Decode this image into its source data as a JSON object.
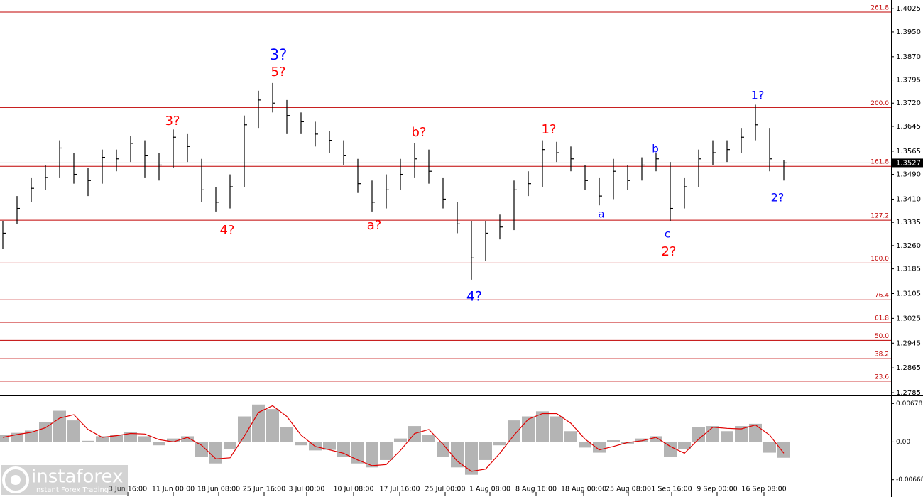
{
  "chart_data": [
    {
      "type": "ohlc",
      "high": [
        1.334,
        1.342,
        1.348,
        1.352,
        1.36,
        1.356,
        1.351,
        1.357,
        1.357,
        1.3615,
        1.36,
        1.356,
        1.3635,
        1.362,
        1.354,
        1.345,
        1.349,
        1.368,
        1.376,
        1.3785,
        1.373,
        1.369,
        1.366,
        1.363,
        1.36,
        1.354,
        1.347,
        1.349,
        1.354,
        1.359,
        1.357,
        1.348,
        1.34,
        1.334,
        1.334,
        1.336,
        1.347,
        1.35,
        1.36,
        1.3595,
        1.358,
        1.352,
        1.348,
        1.354,
        1.352,
        1.3545,
        1.356,
        1.353,
        1.348,
        1.357,
        1.36,
        1.36,
        1.364,
        1.3715,
        1.364,
        1.3535
      ],
      "low": [
        1.325,
        1.333,
        1.34,
        1.344,
        1.348,
        1.346,
        1.342,
        1.346,
        1.35,
        1.353,
        1.348,
        1.347,
        1.351,
        1.353,
        1.34,
        1.337,
        1.338,
        1.345,
        1.364,
        1.369,
        1.362,
        1.362,
        1.358,
        1.356,
        1.352,
        1.343,
        1.337,
        1.338,
        1.344,
        1.348,
        1.346,
        1.338,
        1.33,
        1.315,
        1.321,
        1.328,
        1.331,
        1.342,
        1.345,
        1.353,
        1.35,
        1.344,
        1.339,
        1.341,
        1.344,
        1.347,
        1.35,
        1.334,
        1.338,
        1.345,
        1.352,
        1.353,
        1.356,
        1.36,
        1.35,
        1.347
      ],
      "close": [
        1.33,
        1.338,
        1.3445,
        1.348,
        1.3575,
        1.349,
        1.347,
        1.3545,
        1.354,
        1.359,
        1.355,
        1.352,
        1.361,
        1.358,
        1.344,
        1.34,
        1.345,
        1.365,
        1.373,
        1.372,
        1.368,
        1.366,
        1.362,
        1.36,
        1.355,
        1.346,
        1.34,
        1.344,
        1.349,
        1.354,
        1.35,
        1.341,
        1.333,
        1.322,
        1.33,
        1.332,
        1.344,
        1.346,
        1.357,
        1.356,
        1.354,
        1.347,
        1.342,
        1.35,
        1.347,
        1.352,
        1.354,
        1.338,
        1.345,
        1.354,
        1.356,
        1.357,
        1.361,
        1.365,
        1.354,
        1.3527
      ],
      "color": "#000000",
      "last_price": 1.3527,
      "xlim": [
        -0.2,
        62.55
      ],
      "xticks": [
        {
          "value": 8.8,
          "label": "3 Jun 16:00"
        },
        {
          "value": 12,
          "label": "11 Jun 00:00"
        },
        {
          "value": 15.2,
          "label": "18 Jun 08:00"
        },
        {
          "value": 18.4,
          "label": "25 Jun 16:00"
        },
        {
          "value": 21.4,
          "label": "3 Jul 00:00"
        },
        {
          "value": 24.7,
          "label": "10 Jul 08:00"
        },
        {
          "value": 27.95,
          "label": "17 Jul 16:00"
        },
        {
          "value": 31.15,
          "label": "25 Jul 00:00"
        },
        {
          "value": 34.3,
          "label": "1 Aug 08:00"
        },
        {
          "value": 37.55,
          "label": "8 Aug 16:00"
        },
        {
          "value": 40.9,
          "label": "18 Aug 00:00"
        },
        {
          "value": 44.05,
          "label": "25 Aug 08:00"
        },
        {
          "value": 47.1,
          "label": "1 Sep 16:00"
        },
        {
          "value": 50.3,
          "label": "9 Sep 00:00"
        },
        {
          "value": 53.6,
          "label": "16 Sep 08:00"
        }
      ],
      "ylim": [
        1.2776,
        1.4053
      ],
      "yticks": [
        1.4025,
        {
          "value": 1.395,
          "label": "1.3950"
        },
        {
          "value": 1.387,
          "label": "1.3870"
        },
        1.3795,
        {
          "value": 1.372,
          "label": "1.3720"
        },
        1.3645,
        1.3565,
        {
          "value": 1.349,
          "label": "1.3490"
        },
        {
          "value": 1.341,
          "label": "1.3410"
        },
        1.3335,
        {
          "value": 1.326,
          "label": "1.3260"
        },
        1.3185,
        1.3105,
        1.3025,
        1.2945,
        1.2865,
        1.2785
      ],
      "fib_color": "#c00000",
      "fib_levels": [
        {
          "label": "261.8",
          "price": 1.4014
        },
        {
          "label": "200.0",
          "price": 1.3706
        },
        {
          "label": "161.8",
          "price": 1.3516
        },
        {
          "label": "127.2",
          "price": 1.3342
        },
        {
          "label": "100.0",
          "price": 1.3204
        },
        {
          "label": "76.4",
          "price": 1.3085
        },
        {
          "label": "61.8",
          "price": 1.3012
        },
        {
          "label": "50.0",
          "price": 1.2954
        },
        {
          "label": "38.2",
          "price": 1.2895
        },
        {
          "label": "23.6",
          "price": 1.2822
        }
      ],
      "wave_labels": [
        {
          "text": "3?",
          "color": "#0000ff"
        },
        {
          "text": "5?",
          "color": "#ff0000"
        },
        {
          "text": "3?",
          "color": "#ff0000"
        },
        {
          "text": "4?",
          "color": "#ff0000"
        },
        {
          "text": "a?",
          "color": "#ff0000"
        },
        {
          "text": "b?",
          "color": "#ff0000"
        },
        {
          "text": "4?",
          "color": "#0000ff"
        },
        {
          "text": "1?",
          "color": "#ff0000"
        },
        {
          "text": "a",
          "color": "#0000ff"
        },
        {
          "text": "b",
          "color": "#0000ff"
        },
        {
          "text": "c",
          "color": "#0000ff"
        },
        {
          "text": "2?",
          "color": "#ff0000"
        },
        {
          "text": "1?",
          "color": "#0000ff"
        },
        {
          "text": "2?",
          "color": "#0000ff"
        }
      ]
    },
    {
      "type": "macd",
      "values": [
        0.0012,
        0.0016,
        0.002,
        0.0035,
        0.0055,
        0.0038,
        0.0002,
        0.001,
        0.0012,
        0.0018,
        0.001,
        -0.0006,
        0.0006,
        0.001,
        -0.0026,
        -0.0038,
        -0.0013,
        0.0045,
        0.0066,
        0.0058,
        0.0026,
        -0.0006,
        -0.0015,
        -0.0014,
        -0.0026,
        -0.0038,
        -0.0045,
        -0.0032,
        0.0006,
        0.0028,
        0.0013,
        -0.0026,
        -0.0045,
        -0.0058,
        -0.0032,
        -0.0006,
        0.0038,
        0.0045,
        0.0054,
        0.0045,
        0.0019,
        -0.001,
        -0.0019,
        0.0003,
        -0.0003,
        0.0006,
        0.001,
        -0.0026,
        -0.0013,
        0.0026,
        0.0028,
        0.0019,
        0.0028,
        0.0032,
        -0.0019,
        -0.0028
      ],
      "signal": [
        0.0008,
        0.0013,
        0.0017,
        0.0025,
        0.0042,
        0.0048,
        0.0022,
        0.0008,
        0.0011,
        0.0015,
        0.0014,
        0.0004,
        0,
        0.0008,
        -0.0006,
        -0.003,
        -0.0028,
        0.001,
        0.0052,
        0.0064,
        0.0045,
        0.0012,
        -0.0008,
        -0.0014,
        -0.002,
        -0.0032,
        -0.0042,
        -0.004,
        -0.0015,
        0.0015,
        0.0022,
        -0.0004,
        -0.0034,
        -0.0052,
        -0.0048,
        -0.002,
        0.0012,
        0.004,
        0.005,
        0.005,
        0.0033,
        0.0005,
        -0.0014,
        -0.0008,
        -0.0001,
        0.0002,
        0.0008,
        -0.0008,
        -0.002,
        0.0005,
        0.0026,
        0.0024,
        0.0023,
        0.003,
        0.0012,
        -0.002
      ],
      "color": "#b4b4b4",
      "signal_color": "#e00000",
      "ylim": [
        -0.0091,
        0.0077
      ],
      "yticks": [
        0.00678,
        {
          "value": 0,
          "label": "0.00"
        },
        -0.00668
      ]
    }
  ],
  "watermark": {
    "brand": "instaforex",
    "tagline": "Instant Forex Trading"
  }
}
